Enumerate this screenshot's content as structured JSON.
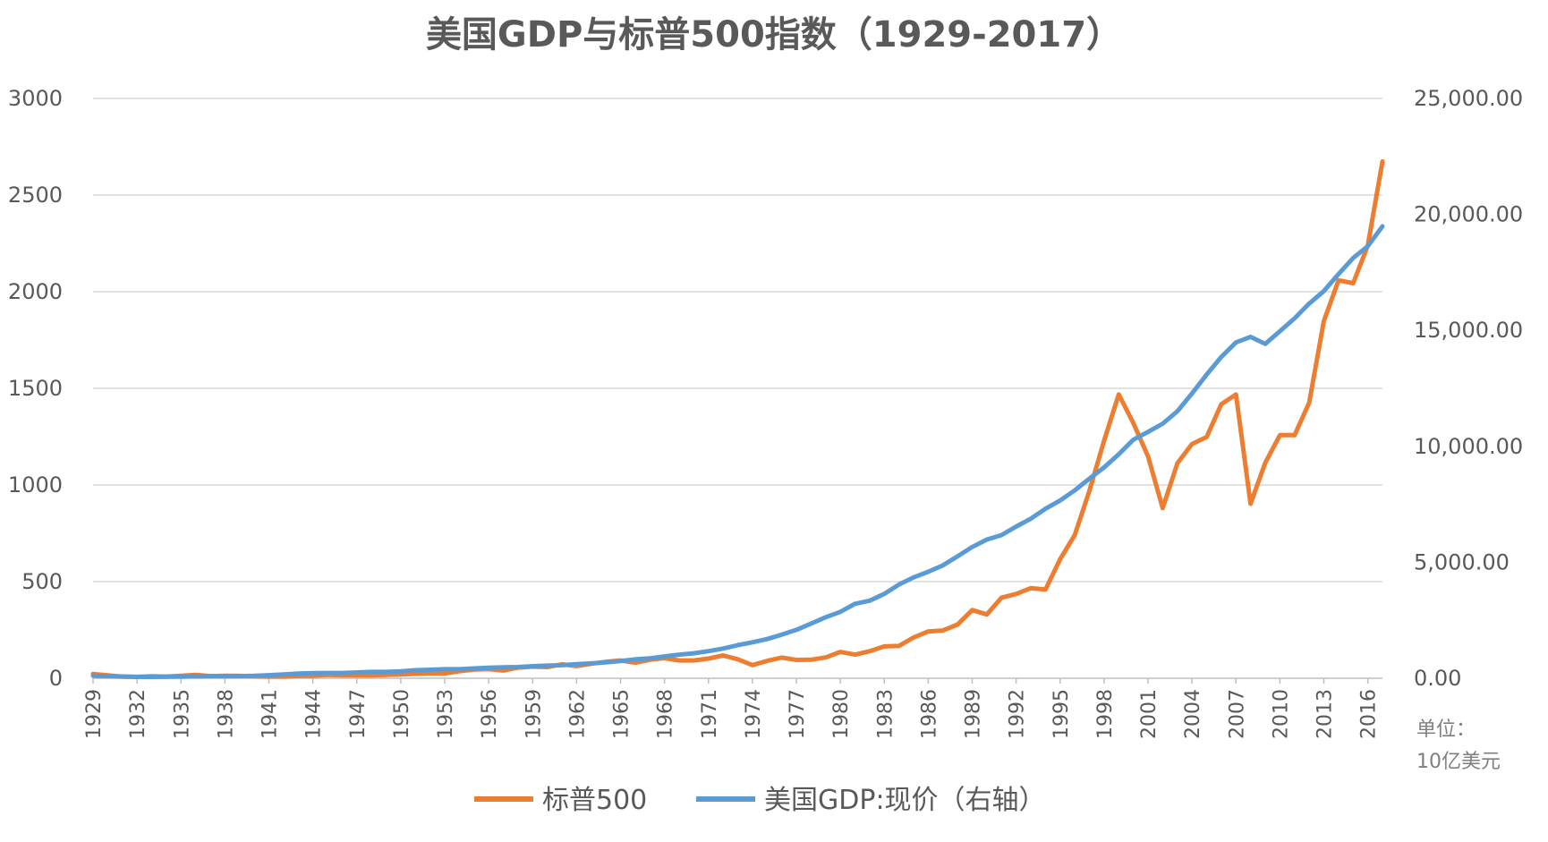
{
  "chart_data": {
    "type": "line",
    "title": "美国GDP与标普500指数（1929-2017）",
    "x_start": 1929,
    "x_end": 2017,
    "x_tick_labels": [
      "1929",
      "1932",
      "1935",
      "1938",
      "1941",
      "1944",
      "1947",
      "1950",
      "1953",
      "1956",
      "1959",
      "1962",
      "1965",
      "1968",
      "1971",
      "1974",
      "1977",
      "1980",
      "1983",
      "1986",
      "1989",
      "1992",
      "1995",
      "1998",
      "2001",
      "2004",
      "2007",
      "2010",
      "2013",
      "2016"
    ],
    "y_left_ticks": [
      "0",
      "500",
      "1000",
      "1500",
      "2000",
      "2500",
      "3000"
    ],
    "y_left_range": [
      0,
      3000
    ],
    "y_right_ticks": [
      "0.00",
      "5,000.00",
      "10,000.00",
      "15,000.00",
      "20,000.00",
      "25,000.00"
    ],
    "y_right_range": [
      0,
      25000
    ],
    "unit_label_line1": "单位：",
    "unit_label_line2": "10亿美元",
    "grid": "horizontal",
    "legend_position": "bottom",
    "series": [
      {
        "name": "标普500",
        "axis": "left",
        "color": "#ED7D31",
        "values": [
          [
            1929,
            22
          ],
          [
            1930,
            15
          ],
          [
            1931,
            8
          ],
          [
            1932,
            7
          ],
          [
            1933,
            10
          ],
          [
            1934,
            9
          ],
          [
            1935,
            13
          ],
          [
            1936,
            17
          ],
          [
            1937,
            11
          ],
          [
            1938,
            13
          ],
          [
            1939,
            12
          ],
          [
            1940,
            10
          ],
          [
            1941,
            9
          ],
          [
            1942,
            9
          ],
          [
            1943,
            12
          ],
          [
            1944,
            13
          ],
          [
            1945,
            17
          ],
          [
            1946,
            15
          ],
          [
            1947,
            15
          ],
          [
            1948,
            15
          ],
          [
            1949,
            17
          ],
          [
            1950,
            20
          ],
          [
            1951,
            23
          ],
          [
            1952,
            26
          ],
          [
            1953,
            25
          ],
          [
            1954,
            36
          ],
          [
            1955,
            45
          ],
          [
            1956,
            47
          ],
          [
            1957,
            40
          ],
          [
            1958,
            55
          ],
          [
            1959,
            60
          ],
          [
            1960,
            58
          ],
          [
            1961,
            72
          ],
          [
            1962,
            63
          ],
          [
            1963,
            75
          ],
          [
            1964,
            85
          ],
          [
            1965,
            92
          ],
          [
            1966,
            80
          ],
          [
            1967,
            96
          ],
          [
            1968,
            104
          ],
          [
            1969,
            92
          ],
          [
            1970,
            92
          ],
          [
            1971,
            102
          ],
          [
            1972,
            118
          ],
          [
            1973,
            98
          ],
          [
            1974,
            68
          ],
          [
            1975,
            90
          ],
          [
            1976,
            107
          ],
          [
            1977,
            95
          ],
          [
            1978,
            96
          ],
          [
            1979,
            108
          ],
          [
            1980,
            136
          ],
          [
            1981,
            122
          ],
          [
            1982,
            140
          ],
          [
            1983,
            165
          ],
          [
            1984,
            167
          ],
          [
            1985,
            211
          ],
          [
            1986,
            242
          ],
          [
            1987,
            247
          ],
          [
            1988,
            278
          ],
          [
            1989,
            353
          ],
          [
            1990,
            330
          ],
          [
            1991,
            417
          ],
          [
            1992,
            436
          ],
          [
            1993,
            466
          ],
          [
            1994,
            459
          ],
          [
            1995,
            616
          ],
          [
            1996,
            741
          ],
          [
            1997,
            970
          ],
          [
            1998,
            1229
          ],
          [
            1999,
            1469
          ],
          [
            2000,
            1320
          ],
          [
            2001,
            1148
          ],
          [
            2002,
            880
          ],
          [
            2003,
            1112
          ],
          [
            2004,
            1212
          ],
          [
            2005,
            1248
          ],
          [
            2006,
            1418
          ],
          [
            2007,
            1468
          ],
          [
            2008,
            903
          ],
          [
            2009,
            1115
          ],
          [
            2010,
            1258
          ],
          [
            2011,
            1258
          ],
          [
            2012,
            1426
          ],
          [
            2013,
            1848
          ],
          [
            2014,
            2059
          ],
          [
            2015,
            2044
          ],
          [
            2016,
            2239
          ],
          [
            2017,
            2674
          ]
        ]
      },
      {
        "name": "美国GDP:现价（右轴）",
        "axis": "right",
        "color": "#5B9BD5",
        "values": [
          [
            1929,
            105
          ],
          [
            1930,
            92
          ],
          [
            1931,
            77
          ],
          [
            1932,
            60
          ],
          [
            1933,
            57
          ],
          [
            1934,
            66
          ],
          [
            1935,
            74
          ],
          [
            1936,
            85
          ],
          [
            1937,
            93
          ],
          [
            1938,
            87
          ],
          [
            1939,
            93
          ],
          [
            1940,
            103
          ],
          [
            1941,
            130
          ],
          [
            1942,
            166
          ],
          [
            1943,
            203
          ],
          [
            1944,
            224
          ],
          [
            1945,
            228
          ],
          [
            1946,
            227
          ],
          [
            1947,
            250
          ],
          [
            1948,
            275
          ],
          [
            1949,
            272
          ],
          [
            1950,
            300
          ],
          [
            1951,
            346
          ],
          [
            1952,
            367
          ],
          [
            1953,
            389
          ],
          [
            1954,
            391
          ],
          [
            1955,
            426
          ],
          [
            1956,
            450
          ],
          [
            1957,
            474
          ],
          [
            1958,
            481
          ],
          [
            1959,
            522
          ],
          [
            1960,
            543
          ],
          [
            1961,
            563
          ],
          [
            1962,
            605
          ],
          [
            1963,
            639
          ],
          [
            1964,
            686
          ],
          [
            1965,
            744
          ],
          [
            1966,
            815
          ],
          [
            1967,
            862
          ],
          [
            1968,
            943
          ],
          [
            1969,
            1019
          ],
          [
            1970,
            1075
          ],
          [
            1971,
            1168
          ],
          [
            1972,
            1282
          ],
          [
            1973,
            1429
          ],
          [
            1974,
            1549
          ],
          [
            1975,
            1689
          ],
          [
            1976,
            1878
          ],
          [
            1977,
            2086
          ],
          [
            1978,
            2357
          ],
          [
            1979,
            2632
          ],
          [
            1980,
            2862
          ],
          [
            1981,
            3211
          ],
          [
            1982,
            3345
          ],
          [
            1983,
            3638
          ],
          [
            1984,
            4041
          ],
          [
            1985,
            4347
          ],
          [
            1986,
            4590
          ],
          [
            1987,
            4870
          ],
          [
            1988,
            5253
          ],
          [
            1989,
            5658
          ],
          [
            1990,
            5980
          ],
          [
            1991,
            6174
          ],
          [
            1992,
            6539
          ],
          [
            1993,
            6879
          ],
          [
            1994,
            7309
          ],
          [
            1995,
            7664
          ],
          [
            1996,
            8100
          ],
          [
            1997,
            8609
          ],
          [
            1998,
            9089
          ],
          [
            1999,
            9661
          ],
          [
            2000,
            10285
          ],
          [
            2001,
            10622
          ],
          [
            2002,
            10978
          ],
          [
            2003,
            11511
          ],
          [
            2004,
            12275
          ],
          [
            2005,
            13094
          ],
          [
            2006,
            13856
          ],
          [
            2007,
            14478
          ],
          [
            2008,
            14719
          ],
          [
            2009,
            14419
          ],
          [
            2010,
            14964
          ],
          [
            2011,
            15518
          ],
          [
            2012,
            16155
          ],
          [
            2013,
            16692
          ],
          [
            2014,
            17428
          ],
          [
            2015,
            18121
          ],
          [
            2016,
            18625
          ],
          [
            2017,
            19485
          ]
        ]
      }
    ]
  }
}
